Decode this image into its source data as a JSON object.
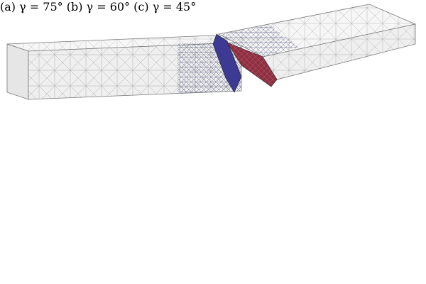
{
  "colors": {
    "mesh_fill": "#eeeeee",
    "mesh_line": "#8a8a8a",
    "dense_line": "#4b4f7a",
    "crack_blue": "#3c3a93",
    "crack_red": "#8e3042",
    "background": "#ffffff"
  },
  "panels": [
    {
      "id": "a",
      "label": "(a)",
      "equation": "γ = 75°",
      "angle_deg": 75
    },
    {
      "id": "b",
      "label": "(b)",
      "equation": "γ = 60°",
      "angle_deg": 60
    },
    {
      "id": "c",
      "label": "(c)",
      "equation": "γ = 45°",
      "angle_deg": 45
    }
  ]
}
